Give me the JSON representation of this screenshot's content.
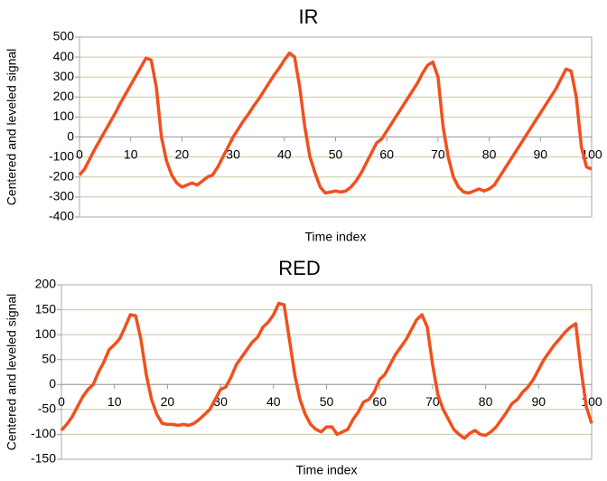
{
  "chart_data": [
    {
      "type": "line",
      "title": "IR",
      "x_label": "Time index",
      "y_label": "Centered and leveled signal",
      "x": [
        0,
        1,
        2,
        3,
        4,
        5,
        6,
        7,
        8,
        9,
        10,
        11,
        12,
        13,
        14,
        15,
        16,
        17,
        18,
        19,
        20,
        21,
        22,
        23,
        24,
        25,
        26,
        27,
        28,
        29,
        30,
        31,
        32,
        33,
        34,
        35,
        36,
        37,
        38,
        39,
        40,
        41,
        42,
        43,
        44,
        45,
        46,
        47,
        48,
        49,
        50,
        51,
        52,
        53,
        54,
        55,
        56,
        57,
        58,
        59,
        60,
        61,
        62,
        63,
        64,
        65,
        66,
        67,
        68,
        69,
        70,
        71,
        72,
        73,
        74,
        75,
        76,
        77,
        78,
        79,
        80,
        81,
        82,
        83,
        84,
        85,
        86,
        87,
        88,
        89,
        90,
        91,
        92,
        93,
        94,
        95,
        96,
        97,
        98,
        99,
        100
      ],
      "series": [
        {
          "color": "#f0501e",
          "values": [
            -190,
            -160,
            -110,
            -60,
            -15,
            30,
            75,
            120,
            170,
            215,
            260,
            305,
            350,
            395,
            385,
            250,
            0,
            -120,
            -190,
            -230,
            -250,
            -240,
            -230,
            -240,
            -220,
            -200,
            -190,
            -150,
            -100,
            -50,
            0,
            40,
            80,
            115,
            155,
            190,
            230,
            270,
            310,
            345,
            385,
            420,
            400,
            250,
            50,
            -100,
            -180,
            -250,
            -280,
            -275,
            -270,
            -275,
            -270,
            -250,
            -220,
            -180,
            -130,
            -80,
            -30,
            -10,
            30,
            70,
            110,
            150,
            190,
            230,
            270,
            320,
            360,
            375,
            300,
            50,
            -100,
            -200,
            -250,
            -275,
            -280,
            -270,
            -260,
            -270,
            -260,
            -240,
            -200,
            -160,
            -120,
            -80,
            -40,
            0,
            40,
            80,
            120,
            160,
            200,
            240,
            290,
            340,
            330,
            200,
            -50,
            -150,
            -160
          ]
        }
      ],
      "xlim": [
        0,
        100
      ],
      "xticks": [
        0,
        10,
        20,
        30,
        40,
        50,
        60,
        70,
        80,
        90,
        100
      ],
      "ylim": [
        -400,
        500
      ],
      "yticks": [
        -400,
        -300,
        -200,
        -100,
        0,
        100,
        200,
        300,
        400,
        500
      ],
      "grid": true
    },
    {
      "type": "line",
      "title": "RED",
      "x_label": "Time index",
      "y_label": "Centered and leveled signal",
      "x": [
        0,
        1,
        2,
        3,
        4,
        5,
        6,
        7,
        8,
        9,
        10,
        11,
        12,
        13,
        14,
        15,
        16,
        17,
        18,
        19,
        20,
        21,
        22,
        23,
        24,
        25,
        26,
        27,
        28,
        29,
        30,
        31,
        32,
        33,
        34,
        35,
        36,
        37,
        38,
        39,
        40,
        41,
        42,
        43,
        44,
        45,
        46,
        47,
        48,
        49,
        50,
        51,
        52,
        53,
        54,
        55,
        56,
        57,
        58,
        59,
        60,
        61,
        62,
        63,
        64,
        65,
        66,
        67,
        68,
        69,
        70,
        71,
        72,
        73,
        74,
        75,
        76,
        77,
        78,
        79,
        80,
        81,
        82,
        83,
        84,
        85,
        86,
        87,
        88,
        89,
        90,
        91,
        92,
        93,
        94,
        95,
        96,
        97,
        98,
        99,
        100
      ],
      "series": [
        {
          "color": "#f0501e",
          "values": [
            -92,
            -80,
            -65,
            -45,
            -25,
            -10,
            0,
            25,
            45,
            70,
            80,
            92,
            115,
            140,
            138,
            90,
            20,
            -30,
            -60,
            -78,
            -80,
            -80,
            -82,
            -80,
            -82,
            -78,
            -70,
            -60,
            -50,
            -30,
            -10,
            -5,
            15,
            40,
            55,
            70,
            85,
            95,
            115,
            125,
            140,
            163,
            160,
            90,
            20,
            -30,
            -60,
            -80,
            -90,
            -95,
            -85,
            -85,
            -100,
            -95,
            -90,
            -70,
            -55,
            -35,
            -30,
            -15,
            10,
            20,
            40,
            60,
            75,
            90,
            110,
            130,
            140,
            115,
            40,
            -20,
            -50,
            -70,
            -90,
            -100,
            -108,
            -98,
            -92,
            -100,
            -102,
            -95,
            -85,
            -70,
            -55,
            -38,
            -30,
            -15,
            -5,
            10,
            30,
            50,
            65,
            80,
            92,
            105,
            115,
            122,
            30,
            -45,
            -78
          ]
        }
      ],
      "xlim": [
        0,
        100
      ],
      "xticks": [
        0,
        10,
        20,
        30,
        40,
        50,
        60,
        70,
        80,
        90,
        100
      ],
      "ylim": [
        -150,
        200
      ],
      "yticks": [
        -150,
        -100,
        -50,
        0,
        50,
        100,
        150,
        200
      ],
      "grid": true
    }
  ]
}
